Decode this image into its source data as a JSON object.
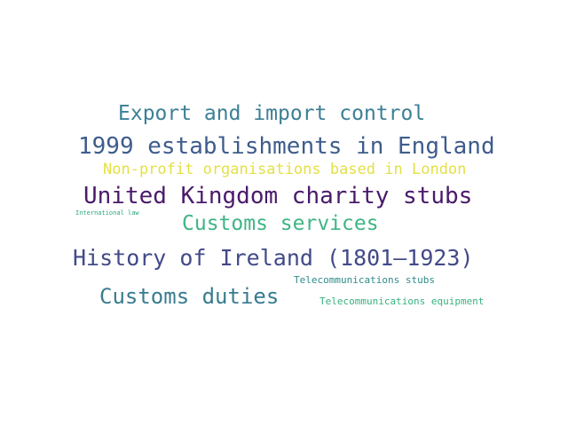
{
  "words": [
    {
      "text": "Export and import control",
      "color": "#3c7f96"
    },
    {
      "text": "1999 establishments in England",
      "color": "#3e5c8c"
    },
    {
      "text": "Non-profit organisations based in London",
      "color": "#e4e046"
    },
    {
      "text": "United Kingdom charity stubs",
      "color": "#4a1a6b"
    },
    {
      "text": "International law",
      "color": "#2aa67e"
    },
    {
      "text": "Customs services",
      "color": "#3fb584"
    },
    {
      "text": "History of Ireland (1801–1923)",
      "color": "#424a88"
    },
    {
      "text": "Telecommunications stubs",
      "color": "#2f8a8a"
    },
    {
      "text": "Customs duties",
      "color": "#397c90"
    },
    {
      "text": "Telecommunications equipment",
      "color": "#37b27f"
    }
  ]
}
